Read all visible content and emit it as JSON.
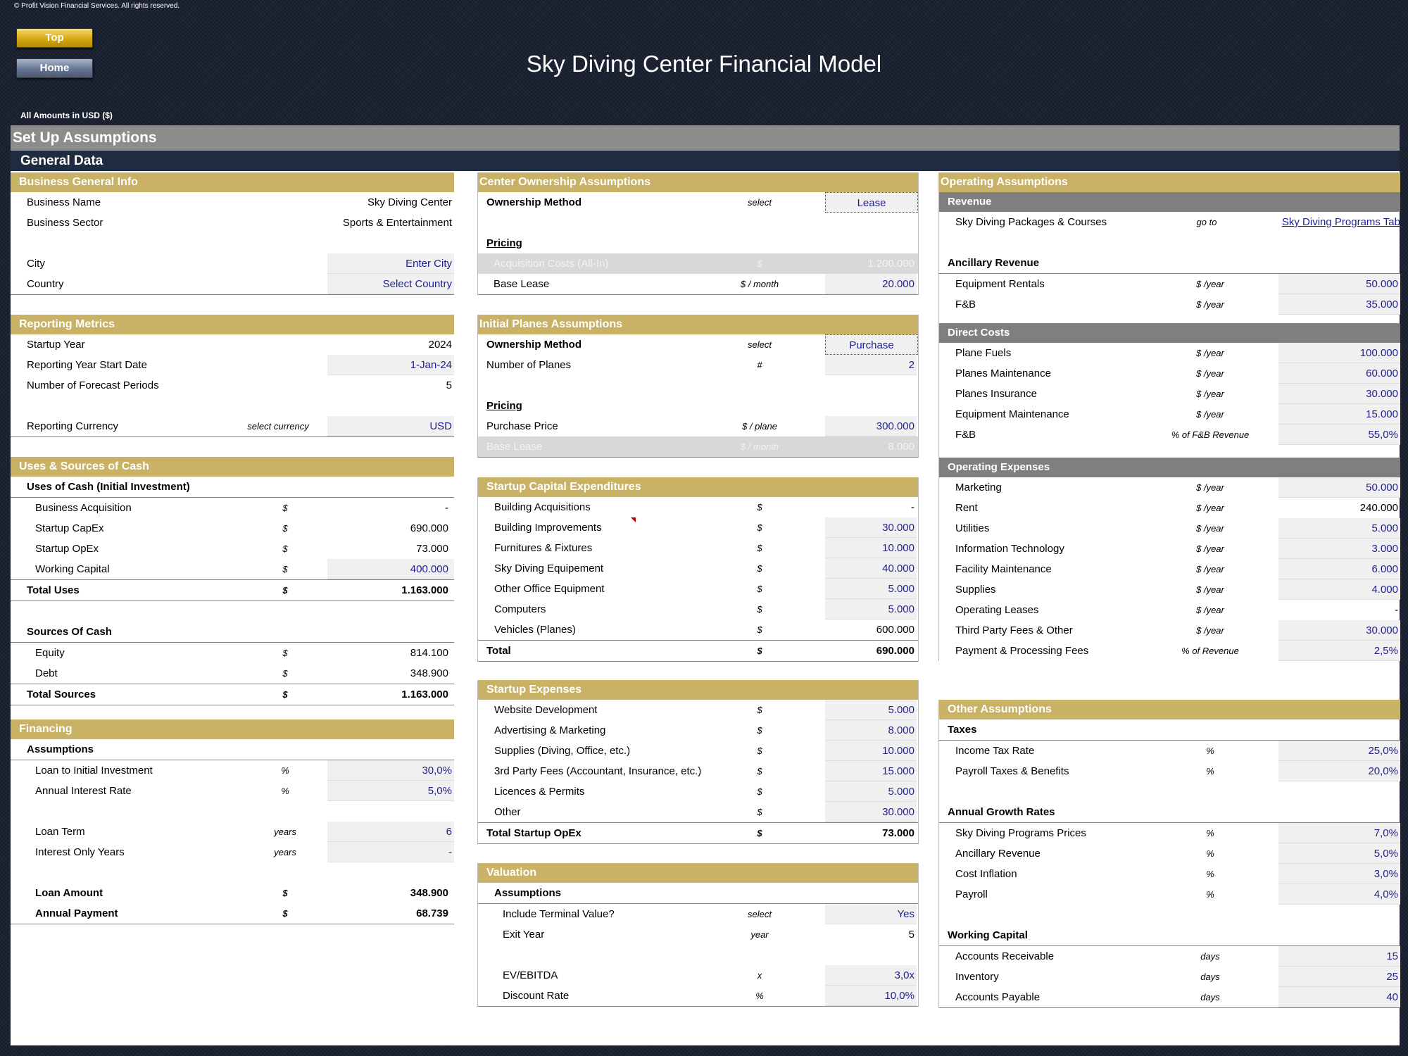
{
  "copyright": "© Profit Vision Financial Services. All rights reserved.",
  "nav": {
    "top_label": "Top",
    "home_label": "Home"
  },
  "title": "Sky Diving Center Financial Model",
  "amounts_note": "All Amounts in  USD ($)",
  "setup_header": "Set Up Assumptions",
  "general_header": "General Data",
  "business": {
    "title": "Business General Info",
    "name_label": "Business Name",
    "name_value": "Sky Diving Center",
    "sector_label": "Business Sector",
    "sector_value": "Sports & Entertainment",
    "city_label": "City",
    "city_value": "Enter City",
    "country_label": "Country",
    "country_value": "Select Country"
  },
  "reporting": {
    "title": "Reporting Metrics",
    "startup_label": "Startup Year",
    "startup_value": "2024",
    "start_date_label": "Reporting Year Start Date",
    "start_date_value": "1-Jan-24",
    "periods_label": "Number of Forecast Periods",
    "periods_value": "5",
    "currency_label": "Reporting Currency",
    "currency_unit": "select currency",
    "currency_value": "USD"
  },
  "uses": {
    "title": "Uses & Sources of Cash",
    "uses_head": "Uses of Cash (Initial Investment)",
    "rows": [
      {
        "label": "Business Acquisition",
        "unit": "$",
        "value": "-",
        "input": false
      },
      {
        "label": "Startup CapEx",
        "unit": "$",
        "value": "690.000",
        "input": false
      },
      {
        "label": "Startup OpEx",
        "unit": "$",
        "value": "73.000",
        "input": false
      },
      {
        "label": "Working Capital",
        "unit": "$",
        "value": "400.000",
        "input": true
      }
    ],
    "total_uses_label": "Total Uses",
    "total_uses_unit": "$",
    "total_uses_value": "1.163.000",
    "sources_head": "Sources Of Cash",
    "sources": [
      {
        "label": "Equity",
        "unit": "$",
        "value": "814.100"
      },
      {
        "label": "Debt",
        "unit": "$",
        "value": "348.900"
      }
    ],
    "total_sources_label": "Total Sources",
    "total_sources_unit": "$",
    "total_sources_value": "1.163.000"
  },
  "financing": {
    "title": "Financing",
    "assumptions_head": "Assumptions",
    "loan_label": "Loan to Initial Investment",
    "loan_unit": "%",
    "loan_value": "30,0%",
    "rate_label": "Annual Interest Rate",
    "rate_unit": "%",
    "rate_value": "5,0%",
    "term_label": "Loan Term",
    "term_unit": "years",
    "term_value": "6",
    "io_label": "Interest Only Years",
    "io_unit": "years",
    "io_value": "-",
    "amount_label": "Loan Amount",
    "amount_unit": "$",
    "amount_value": "348.900",
    "payment_label": "Annual Payment",
    "payment_unit": "$",
    "payment_value": "68.739"
  },
  "ownership": {
    "title": "Center Ownership Assumptions",
    "method_label": "Ownership Method",
    "method_unit": "select",
    "method_value": "Lease",
    "pricing_label": "Pricing",
    "acq_label": "Acquisition Costs (All-In)",
    "acq_unit": "$",
    "acq_value": "1.200.000",
    "lease_label": "Base Lease",
    "lease_unit": "$ / month",
    "lease_value": "20.000"
  },
  "planes": {
    "title": "Initial Planes Assumptions",
    "method_label": "Ownership Method",
    "method_unit": "select",
    "method_value": "Purchase",
    "num_label": "Number of Planes",
    "num_unit": "#",
    "num_value": "2",
    "pricing_label": "Pricing",
    "price_label": "Purchase Price",
    "price_unit": "$ / plane",
    "price_value": "300.000",
    "lease_label": "Base Lease",
    "lease_unit": "$ / month",
    "lease_value": "8.000"
  },
  "capex": {
    "title": "Startup Capital Expenditures",
    "rows": [
      {
        "label": "Building Acquisitions",
        "unit": "$",
        "value": "-",
        "input": false
      },
      {
        "label": "Building Improvements",
        "unit": "$",
        "value": "30.000",
        "input": true
      },
      {
        "label": "Furnitures & Fixtures",
        "unit": "$",
        "value": "10.000",
        "input": true
      },
      {
        "label": "Sky Diving Equipement",
        "unit": "$",
        "value": "40.000",
        "input": true
      },
      {
        "label": "Other Office Equipment",
        "unit": "$",
        "value": "5.000",
        "input": true
      },
      {
        "label": "Computers",
        "unit": "$",
        "value": "5.000",
        "input": true
      },
      {
        "label": "Vehicles (Planes)",
        "unit": "$",
        "value": "600.000",
        "input": false
      }
    ],
    "total_label": "Total",
    "total_unit": "$",
    "total_value": "690.000"
  },
  "startup_exp": {
    "title": "Startup Expenses",
    "rows": [
      {
        "label": "Website Development",
        "unit": "$",
        "value": "5.000"
      },
      {
        "label": "Advertising & Marketing",
        "unit": "$",
        "value": "8.000"
      },
      {
        "label": "Supplies (Diving, Office, etc.)",
        "unit": "$",
        "value": "10.000"
      },
      {
        "label": "3rd Party Fees (Accountant, Insurance, etc.)",
        "unit": "$",
        "value": "15.000"
      },
      {
        "label": "Licences & Permits",
        "unit": "$",
        "value": "5.000"
      },
      {
        "label": "Other",
        "unit": "$",
        "value": "30.000"
      }
    ],
    "total_label": "Total Startup OpEx",
    "total_unit": "$",
    "total_value": "73.000"
  },
  "valuation": {
    "title": "Valuation",
    "assumptions_head": "Assumptions",
    "tv_label": "Include Terminal Value?",
    "tv_unit": "select",
    "tv_value": "Yes",
    "exit_label": "Exit Year",
    "exit_unit": "year",
    "exit_value": "5",
    "ev_label": "EV/EBITDA",
    "ev_unit": "x",
    "ev_value": "3,0x",
    "dr_label": "Discount Rate",
    "dr_unit": "%",
    "dr_value": "10,0%"
  },
  "operating": {
    "title": "Operating Assumptions",
    "revenue_head": "Revenue",
    "packages_label": "Sky Diving Packages & Courses",
    "packages_unit": "go to",
    "packages_link": "Sky Diving Programs Tab",
    "ancillary_head": "Ancillary Revenue",
    "ancillary": [
      {
        "label": "Equipment Rentals",
        "unit": "$ /year",
        "value": "50.000"
      },
      {
        "label": "F&B",
        "unit": "$ /year",
        "value": "35.000"
      }
    ],
    "direct_head": "Direct Costs",
    "direct": [
      {
        "label": "Plane Fuels",
        "unit": "$ /year",
        "value": "100.000"
      },
      {
        "label": "Planes Maintenance",
        "unit": "$ /year",
        "value": "60.000"
      },
      {
        "label": "Planes Insurance",
        "unit": "$ /year",
        "value": "30.000"
      },
      {
        "label": "Equipment Maintenance",
        "unit": "$ /year",
        "value": "15.000"
      },
      {
        "label": "F&B",
        "unit": "% of F&B Revenue",
        "value": "55,0%"
      }
    ],
    "opex_head": "Operating Expenses",
    "opex": [
      {
        "label": "Marketing",
        "unit": "$ /year",
        "value": "50.000",
        "input": true
      },
      {
        "label": "Rent",
        "unit": "$ /year",
        "value": "240.000",
        "input": false
      },
      {
        "label": "Utilities",
        "unit": "$ /year",
        "value": "5.000",
        "input": true
      },
      {
        "label": "Information Technology",
        "unit": "$ /year",
        "value": "3.000",
        "input": true
      },
      {
        "label": "Facility Maintenance",
        "unit": "$ /year",
        "value": "6.000",
        "input": true
      },
      {
        "label": "Supplies",
        "unit": "$ /year",
        "value": "4.000",
        "input": true
      },
      {
        "label": "Operating Leases",
        "unit": "$ /year",
        "value": "-",
        "input": false
      },
      {
        "label": "Third Party Fees & Other",
        "unit": "$ /year",
        "value": "30.000",
        "input": true
      },
      {
        "label": "Payment & Processing Fees",
        "unit": "% of Revenue",
        "value": "2,5%",
        "input": true
      }
    ]
  },
  "other": {
    "title": "Other Assumptions",
    "taxes_head": "Taxes",
    "taxes": [
      {
        "label": "Income Tax Rate",
        "unit": "%",
        "value": "25,0%"
      },
      {
        "label": "Payroll Taxes & Benefits",
        "unit": "%",
        "value": "20,0%"
      }
    ],
    "growth_head": "Annual Growth Rates",
    "growth": [
      {
        "label": "Sky Diving Programs Prices",
        "unit": "%",
        "value": "7,0%"
      },
      {
        "label": "Ancillary Revenue",
        "unit": "%",
        "value": "5,0%"
      },
      {
        "label": "Cost Inflation",
        "unit": "%",
        "value": "3,0%"
      },
      {
        "label": "Payroll",
        "unit": "%",
        "value": "4,0%"
      }
    ],
    "wc_head": "Working Capital",
    "wc": [
      {
        "label": "Accounts Receivable",
        "unit": "days",
        "value": "15"
      },
      {
        "label": "Inventory",
        "unit": "days",
        "value": "25"
      },
      {
        "label": "Accounts Payable",
        "unit": "days",
        "value": "40"
      }
    ]
  }
}
